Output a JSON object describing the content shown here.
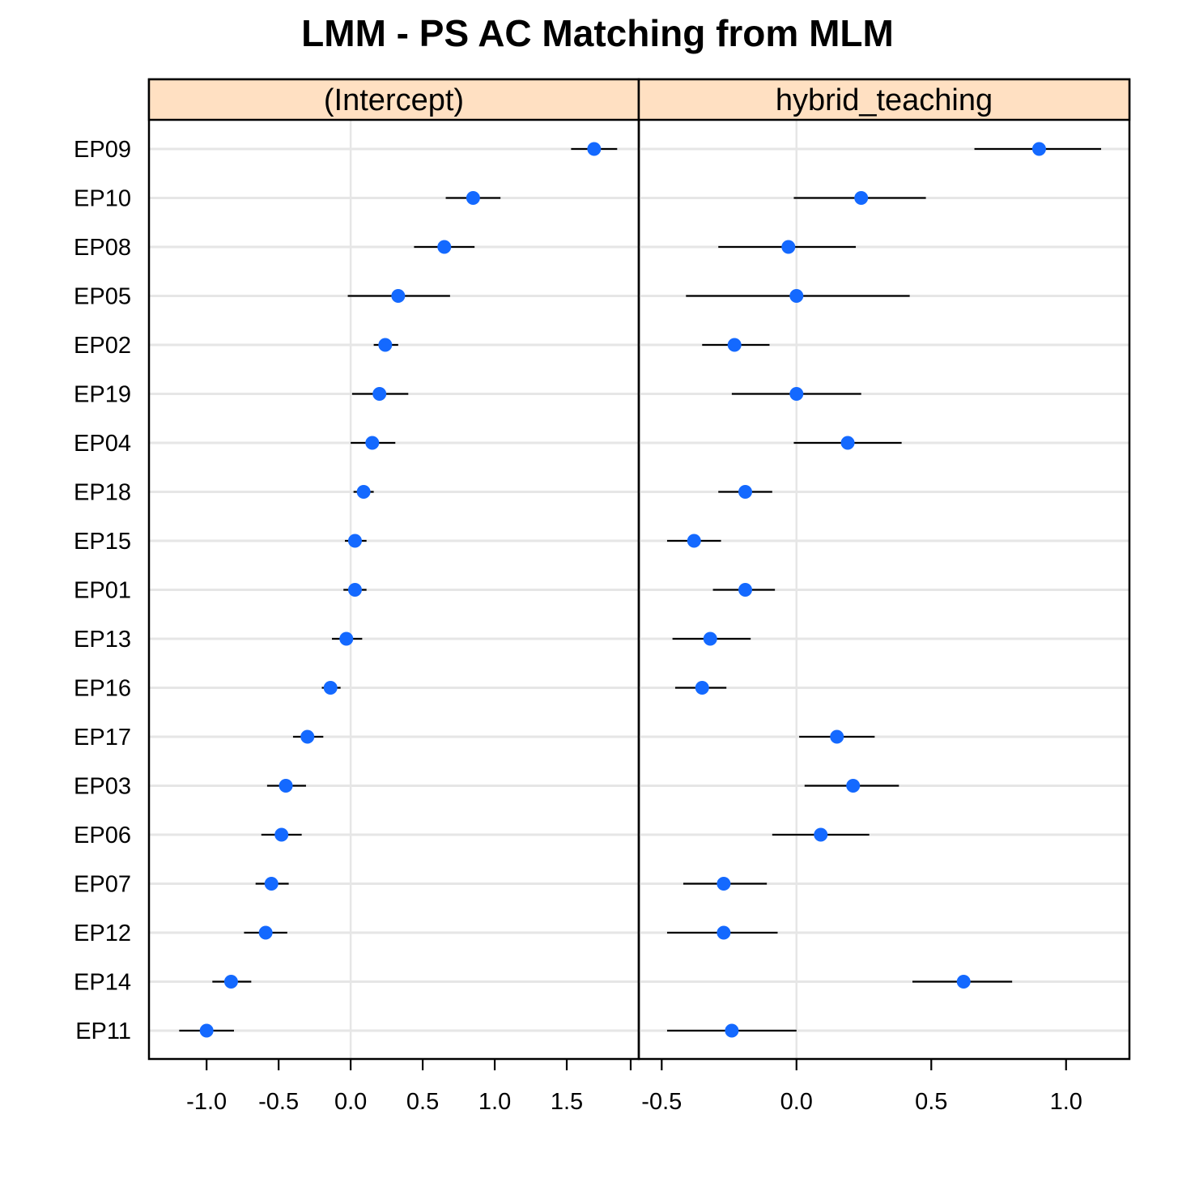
{
  "chart_data": {
    "type": "scatter",
    "title": "LMM - PS AC Matching from MLM",
    "categories": [
      "EP09",
      "EP10",
      "EP08",
      "EP05",
      "EP02",
      "EP19",
      "EP04",
      "EP18",
      "EP15",
      "EP01",
      "EP13",
      "EP16",
      "EP17",
      "EP03",
      "EP06",
      "EP07",
      "EP12",
      "EP14",
      "EP11"
    ],
    "grid": true,
    "panels": [
      {
        "name": "(Intercept)",
        "strip_color": "#ffe0c2",
        "xlim": [
          -1.4,
          2.0
        ],
        "xticks": [
          -1.0,
          -0.5,
          0.0,
          0.5,
          1.0,
          1.5
        ],
        "xtick_labels": [
          "-1.0",
          "-0.5",
          "0.0",
          "0.5",
          "1.0",
          "1.5"
        ],
        "points": [
          {
            "estimate": 1.69,
            "lower": 1.53,
            "upper": 1.85
          },
          {
            "estimate": 0.85,
            "lower": 0.66,
            "upper": 1.04
          },
          {
            "estimate": 0.65,
            "lower": 0.44,
            "upper": 0.86
          },
          {
            "estimate": 0.33,
            "lower": -0.02,
            "upper": 0.69
          },
          {
            "estimate": 0.24,
            "lower": 0.16,
            "upper": 0.33
          },
          {
            "estimate": 0.2,
            "lower": 0.01,
            "upper": 0.4
          },
          {
            "estimate": 0.15,
            "lower": 0.0,
            "upper": 0.31
          },
          {
            "estimate": 0.09,
            "lower": 0.02,
            "upper": 0.16
          },
          {
            "estimate": 0.03,
            "lower": -0.04,
            "upper": 0.11
          },
          {
            "estimate": 0.03,
            "lower": -0.05,
            "upper": 0.11
          },
          {
            "estimate": -0.03,
            "lower": -0.13,
            "upper": 0.08
          },
          {
            "estimate": -0.14,
            "lower": -0.2,
            "upper": -0.07
          },
          {
            "estimate": -0.3,
            "lower": -0.4,
            "upper": -0.19
          },
          {
            "estimate": -0.45,
            "lower": -0.58,
            "upper": -0.31
          },
          {
            "estimate": -0.48,
            "lower": -0.62,
            "upper": -0.34
          },
          {
            "estimate": -0.55,
            "lower": -0.66,
            "upper": -0.43
          },
          {
            "estimate": -0.59,
            "lower": -0.74,
            "upper": -0.44
          },
          {
            "estimate": -0.83,
            "lower": -0.96,
            "upper": -0.69
          },
          {
            "estimate": -1.0,
            "lower": -1.19,
            "upper": -0.81
          }
        ]
      },
      {
        "name": "hybrid_teaching",
        "strip_color": "#ffe0c2",
        "xlim": [
          -0.585,
          1.235
        ],
        "xticks": [
          -0.5,
          0.0,
          0.5,
          1.0
        ],
        "xtick_labels": [
          "-0.5",
          "0.0",
          "0.5",
          "1.0"
        ],
        "points": [
          {
            "estimate": 0.9,
            "lower": 0.66,
            "upper": 1.13
          },
          {
            "estimate": 0.24,
            "lower": -0.01,
            "upper": 0.48
          },
          {
            "estimate": -0.03,
            "lower": -0.29,
            "upper": 0.22
          },
          {
            "estimate": 0.0,
            "lower": -0.41,
            "upper": 0.42
          },
          {
            "estimate": -0.23,
            "lower": -0.35,
            "upper": -0.1
          },
          {
            "estimate": 0.0,
            "lower": -0.24,
            "upper": 0.24
          },
          {
            "estimate": 0.19,
            "lower": -0.01,
            "upper": 0.39
          },
          {
            "estimate": -0.19,
            "lower": -0.29,
            "upper": -0.09
          },
          {
            "estimate": -0.38,
            "lower": -0.48,
            "upper": -0.28
          },
          {
            "estimate": -0.19,
            "lower": -0.31,
            "upper": -0.08
          },
          {
            "estimate": -0.32,
            "lower": -0.46,
            "upper": -0.17
          },
          {
            "estimate": -0.35,
            "lower": -0.45,
            "upper": -0.26
          },
          {
            "estimate": 0.15,
            "lower": 0.01,
            "upper": 0.29
          },
          {
            "estimate": 0.21,
            "lower": 0.03,
            "upper": 0.38
          },
          {
            "estimate": 0.09,
            "lower": -0.09,
            "upper": 0.27
          },
          {
            "estimate": -0.27,
            "lower": -0.42,
            "upper": -0.11
          },
          {
            "estimate": -0.27,
            "lower": -0.48,
            "upper": -0.07
          },
          {
            "estimate": 0.62,
            "lower": 0.43,
            "upper": 0.8
          },
          {
            "estimate": -0.24,
            "lower": -0.48,
            "upper": 0.0
          }
        ]
      }
    ]
  }
}
